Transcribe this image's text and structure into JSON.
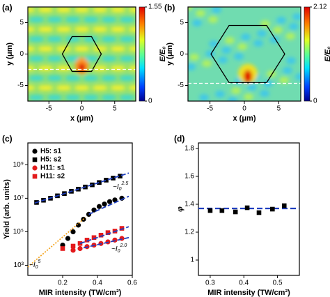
{
  "chart_data": [
    {
      "type": "heatmap",
      "panel_label": "(a)",
      "xlabel": "x (μm)",
      "ylabel": "y (μm)",
      "colorbar_label": "E/E₀",
      "xlim": [
        -8.2,
        8.2
      ],
      "ylim": [
        -7.5,
        7.5
      ],
      "xticks": [
        -5,
        0,
        5
      ],
      "yticks": [
        -5,
        0,
        5
      ],
      "colorbar_lim": [
        0,
        1.55
      ],
      "colorbar_ticks": [
        0,
        1.55
      ]
    },
    {
      "type": "heatmap",
      "panel_label": "(b)",
      "xlabel": "x (μm)",
      "ylabel": "y (μm)",
      "colorbar_label": "E/E₀",
      "xlim": [
        -8.2,
        8.2
      ],
      "ylim": [
        -7.5,
        7.5
      ],
      "xticks": [
        -5,
        0,
        5
      ],
      "yticks": [
        -5,
        0,
        5
      ],
      "colorbar_lim": [
        0,
        2.12
      ],
      "colorbar_ticks": [
        0,
        2.12
      ]
    },
    {
      "type": "scatter",
      "panel_label": "(c)",
      "xlabel": "MIR intensity (TW/cm²)",
      "ylabel": "Yield (arb. units)",
      "log_y": true,
      "xlim": [
        0,
        0.6
      ],
      "ylim": [
        250,
        20000000000
      ],
      "xticks": [
        0.2,
        0.4,
        0.6
      ],
      "yticks": [
        {
          "value": 1000,
          "label": "10³"
        },
        {
          "value": 100000,
          "label": "10⁵"
        },
        {
          "value": 10000000,
          "label": "10⁷"
        },
        {
          "value": 1000000000,
          "label": "10⁹"
        }
      ],
      "series": [
        {
          "name": "H5:  s1",
          "color": "#000000",
          "marker": "circle",
          "x": [
            0.2,
            0.23,
            0.26,
            0.29,
            0.32,
            0.35,
            0.38,
            0.41,
            0.44,
            0.47,
            0.5,
            0.54
          ],
          "values": [
            16000,
            40000,
            100000,
            250000,
            560000,
            1100000,
            2000000,
            3200000,
            4500000,
            6300000,
            7900000,
            10000000
          ]
        },
        {
          "name": "H5:  s2",
          "color": "#000000",
          "marker": "square",
          "x": [
            0.05,
            0.09,
            0.13,
            0.17,
            0.21,
            0.25,
            0.29,
            0.33,
            0.37,
            0.41,
            0.45,
            0.49,
            0.53
          ],
          "values": [
            5600000,
            7600000,
            10000000,
            14000000,
            19000000,
            26000000,
            35000000,
            47000000,
            63000000,
            87000000,
            120000000,
            160000000,
            210000000
          ]
        },
        {
          "name": "H11: s1",
          "color": "#e31a1c",
          "marker": "circle",
          "x": [
            0.26,
            0.3,
            0.34,
            0.38,
            0.42,
            0.46,
            0.5,
            0.54
          ],
          "values": [
            7900,
            10000,
            13000,
            16000,
            20000,
            25000,
            32000,
            40000
          ]
        },
        {
          "name": "H11: s2",
          "color": "#e31a1c",
          "marker": "square",
          "x": [
            0.2,
            0.26,
            0.3,
            0.34,
            0.38,
            0.42,
            0.46,
            0.5,
            0.54
          ],
          "values": [
            10000,
            14000,
            20000,
            32000,
            45000,
            63000,
            89000,
            110000,
            160000
          ]
        }
      ],
      "fits": [
        {
          "color": "#1f3fbf",
          "style": "dashed",
          "x": [
            0.04,
            0.58
          ],
          "values": [
            5200000,
            320000000
          ]
        },
        {
          "color": "#1f3fbf",
          "style": "dashed",
          "x": [
            0.35,
            0.58
          ],
          "values": [
            1100000,
            13000000
          ]
        },
        {
          "color": "#1f3fbf",
          "style": "dashed",
          "x": [
            0.3,
            0.58
          ],
          "values": [
            20000,
            200000
          ]
        },
        {
          "color": "#1f3fbf",
          "style": "dashed",
          "x": [
            0.32,
            0.58
          ],
          "values": [
            11000,
            45000
          ]
        },
        {
          "color": "#f5a623",
          "style": "dotted",
          "x": [
            0,
            0.33
          ],
          "values": [
            800,
            700000
          ]
        }
      ],
      "annotations": [
        {
          "text": "~I",
          "sub": "0",
          "sup": "2.5"
        },
        {
          "text": "~I",
          "sub": "0",
          "sup": "5"
        },
        {
          "text": "~I",
          "sub": "0",
          "sup": "2.0"
        }
      ]
    },
    {
      "type": "scatter",
      "panel_label": "(d)",
      "xlabel": "MIR intensity (TW/cm²)",
      "ylabel": "φ",
      "xlim": [
        0.265,
        0.565
      ],
      "ylim": [
        0.89,
        1.84
      ],
      "xticks": [
        0.3,
        0.4,
        0.5
      ],
      "yticks": [
        1,
        1.2,
        1.4,
        1.6,
        1.8
      ],
      "series": [
        {
          "color": "#000000",
          "marker": "square",
          "x": [
            0.3,
            0.335,
            0.375,
            0.41,
            0.445,
            0.485,
            0.52
          ],
          "values": [
            1.355,
            1.355,
            1.345,
            1.375,
            1.34,
            1.365,
            1.39
          ]
        }
      ],
      "mean_line": {
        "value": 1.37,
        "color": "#1f3fbf"
      }
    }
  ]
}
